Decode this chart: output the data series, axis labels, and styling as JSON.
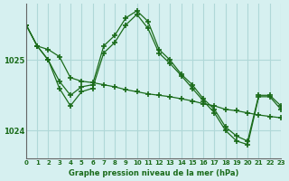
{
  "title": "Graphe pression niveau de la mer (hPa)",
  "background_color": "#d6f0f0",
  "grid_color": "#b0d8d8",
  "line_color": "#1a6b1a",
  "xlim": [
    0,
    23
  ],
  "ylim": [
    1023.6,
    1025.8
  ],
  "yticks": [
    1024,
    1025
  ],
  "xticks": [
    0,
    1,
    2,
    3,
    4,
    5,
    6,
    7,
    8,
    9,
    10,
    11,
    12,
    13,
    14,
    15,
    16,
    17,
    18,
    19,
    20,
    21,
    22,
    23
  ],
  "series": [
    {
      "x": [
        0,
        1,
        2,
        3,
        4,
        5,
        6,
        7,
        8,
        9,
        10,
        11,
        12,
        13,
        14,
        15,
        16,
        17,
        18,
        19,
        20,
        21,
        22,
        23
      ],
      "y": [
        1025.5,
        1025.2,
        1025.15,
        1025.05,
        1024.75,
        1024.7,
        1024.68,
        1024.65,
        1024.62,
        1024.58,
        1024.55,
        1024.52,
        1024.5,
        1024.48,
        1024.45,
        1024.42,
        1024.38,
        1024.35,
        1024.3,
        1024.28,
        1024.25,
        1024.22,
        1024.2,
        1024.18
      ]
    },
    {
      "x": [
        0,
        1,
        2,
        3,
        4,
        5,
        6,
        7,
        8,
        9,
        10,
        11,
        12,
        13,
        14,
        15,
        16,
        17,
        18,
        19,
        20,
        21,
        22,
        23
      ],
      "y": [
        1025.5,
        1025.2,
        1025.0,
        1024.7,
        1024.5,
        1024.62,
        1024.65,
        1025.2,
        1025.35,
        1025.6,
        1025.7,
        1025.55,
        1025.15,
        1025.0,
        1024.8,
        1024.65,
        1024.45,
        1024.3,
        1024.05,
        1023.92,
        1023.85,
        1024.5,
        1024.5,
        1024.35
      ]
    },
    {
      "x": [
        0,
        1,
        2,
        3,
        4,
        5,
        6,
        7,
        8,
        9,
        10,
        11,
        12,
        13,
        14,
        15,
        16,
        17,
        18,
        19,
        20,
        21,
        22,
        23
      ],
      "y": [
        1025.5,
        1025.2,
        1025.0,
        1024.6,
        1024.35,
        1024.55,
        1024.6,
        1025.1,
        1025.25,
        1025.5,
        1025.65,
        1025.45,
        1025.1,
        1024.95,
        1024.78,
        1024.6,
        1024.42,
        1024.25,
        1024.0,
        1023.85,
        1023.8,
        1024.48,
        1024.48,
        1024.3
      ]
    }
  ]
}
